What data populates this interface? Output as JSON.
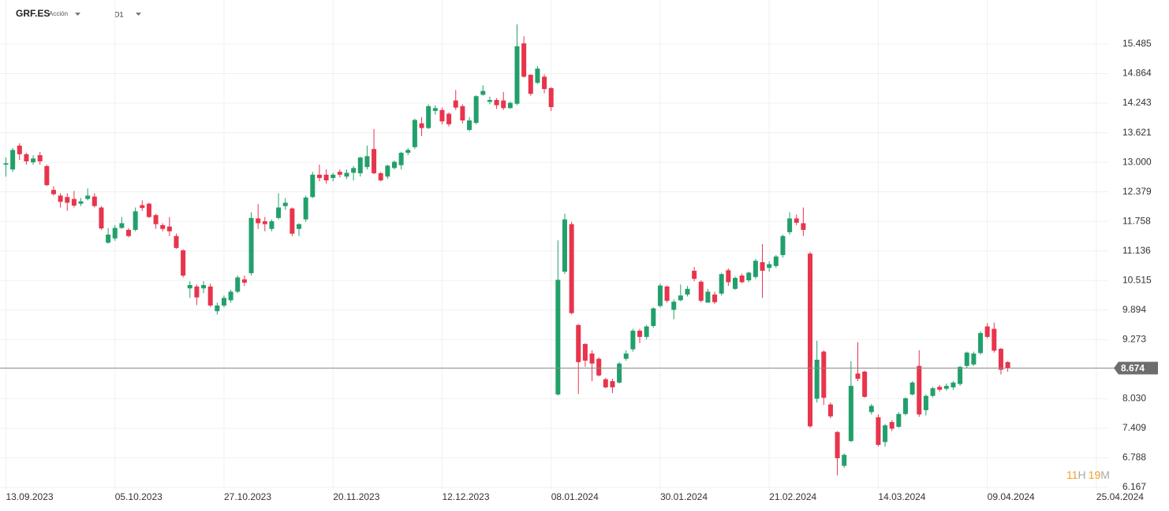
{
  "header": {
    "symbol": "GRF.ES",
    "kind": "Acción",
    "timeframe": "D1"
  },
  "countdown": {
    "hours": "11",
    "hours_unit": "H",
    "minutes": "19",
    "minutes_unit": "M"
  },
  "chart_data": {
    "type": "candlestick",
    "categories": [
      "13.09.2023",
      null,
      null,
      null,
      null,
      null,
      null,
      null,
      null,
      null,
      null,
      null,
      null,
      null,
      null,
      null,
      "05.10.2023",
      null,
      null,
      null,
      null,
      null,
      null,
      null,
      null,
      null,
      null,
      null,
      null,
      null,
      null,
      null,
      "27.10.2023",
      null,
      null,
      null,
      null,
      null,
      null,
      null,
      null,
      null,
      null,
      null,
      null,
      null,
      null,
      null,
      "20.11.2023",
      null,
      null,
      null,
      null,
      null,
      null,
      null,
      null,
      null,
      null,
      null,
      null,
      null,
      null,
      null,
      "12.12.2023",
      null,
      null,
      null,
      null,
      null,
      null,
      null,
      null,
      null,
      null,
      null,
      null,
      null,
      null,
      null,
      "08.01.2024",
      null,
      null,
      null,
      null,
      null,
      null,
      null,
      null,
      null,
      null,
      null,
      null,
      null,
      null,
      null,
      "30.01.2024",
      null,
      null,
      null,
      null,
      null,
      null,
      null,
      null,
      null,
      null,
      null,
      null,
      null,
      null,
      null,
      "21.02.2024",
      null,
      null,
      null,
      null,
      null,
      null,
      null,
      null,
      null,
      null,
      null,
      null,
      null,
      null,
      null,
      "14.03.2024",
      null,
      null,
      null,
      null,
      null,
      null,
      null,
      null,
      null,
      null,
      null,
      null,
      null,
      null,
      null,
      "09.04.2024",
      null,
      null,
      null,
      null,
      null,
      null,
      null,
      null,
      null,
      null,
      null,
      null,
      null,
      null,
      null,
      "25.04.2024"
    ],
    "open": [
      12.95,
      12.85,
      13.35,
      13.17,
      13.0,
      13.15,
      12.92,
      12.42,
      12.3,
      12.27,
      12.23,
      12.13,
      12.23,
      12.28,
      12.05,
      11.31,
      11.4,
      11.62,
      11.58,
      11.58,
      12.1,
      12.13,
      11.89,
      11.68,
      11.65,
      11.45,
      11.15,
      10.35,
      10.39,
      10.35,
      10.39,
      9.87,
      9.99,
      10.1,
      10.28,
      10.54,
      10.67,
      11.82,
      11.76,
      11.6,
      11.83,
      12.08,
      12.03,
      11.6,
      11.8,
      12.27,
      12.74,
      12.74,
      12.67,
      12.8,
      12.7,
      12.78,
      12.77,
      12.9,
      13.28,
      12.77,
      12.7,
      12.88,
      12.94,
      13.2,
      13.32,
      13.82,
      13.72,
      14.08,
      14.1,
      14.02,
      14.3,
      14.18,
      13.68,
      13.83,
      14.42,
      14.27,
      14.31,
      14.3,
      14.14,
      14.23,
      15.5,
      14.84,
      14.67,
      14.8,
      14.56,
      8.12,
      10.7,
      11.7,
      9.58,
      9.18,
      8.98,
      8.87,
      8.44,
      8.4,
      8.37,
      8.87,
      9.07,
      9.46,
      9.33,
      9.56,
      9.98,
      10.39,
      9.9,
      10.1,
      10.22,
      10.72,
      10.49,
      10.05,
      10.22,
      10.24,
      10.73,
      10.34,
      10.62,
      10.52,
      10.59,
      10.9,
      10.78,
      10.82,
      11.05,
      11.53,
      11.82,
      11.72,
      11.08,
      8.03,
      9.02,
      7.91,
      7.33,
      6.62,
      7.14,
      8.56,
      8.6,
      7.75,
      7.64,
      7.12,
      7.54,
      7.44,
      7.71,
      8.12,
      8.72,
      7.79,
      8.09,
      8.28,
      8.24,
      8.27,
      8.34,
      8.72,
      8.75,
      8.99,
      9.55,
      9.5,
      9.08,
      8.8,
      null,
      null,
      null,
      null,
      null,
      null,
      null,
      null,
      null,
      null,
      null,
      null,
      null
    ],
    "high": [
      13.1,
      13.3,
      13.4,
      13.2,
      13.15,
      13.22,
      12.95,
      12.5,
      12.35,
      12.35,
      12.4,
      12.25,
      12.45,
      12.35,
      12.08,
      11.62,
      11.68,
      11.85,
      11.62,
      12.05,
      12.2,
      12.15,
      11.92,
      11.72,
      11.85,
      11.5,
      11.17,
      10.5,
      10.43,
      10.5,
      10.45,
      10.05,
      10.2,
      10.32,
      10.62,
      10.62,
      11.95,
      12.12,
      11.85,
      11.8,
      12.35,
      12.25,
      12.05,
      11.72,
      12.3,
      12.8,
      12.95,
      12.85,
      12.78,
      12.85,
      12.85,
      12.92,
      13.12,
      13.35,
      13.7,
      12.8,
      12.95,
      13.04,
      13.22,
      13.3,
      13.92,
      13.95,
      14.22,
      14.2,
      14.15,
      14.05,
      14.52,
      14.22,
      13.95,
      14.41,
      14.62,
      14.38,
      14.35,
      14.48,
      14.28,
      15.9,
      15.65,
      14.85,
      15.02,
      14.85,
      14.58,
      11.36,
      11.92,
      11.75,
      9.6,
      9.2,
      9.05,
      8.9,
      8.47,
      8.45,
      8.8,
      9.05,
      9.5,
      9.5,
      9.58,
      9.95,
      10.45,
      10.41,
      10.12,
      10.43,
      10.4,
      10.8,
      10.52,
      10.34,
      10.28,
      10.68,
      10.77,
      10.6,
      10.66,
      10.7,
      10.97,
      11.28,
      10.92,
      11.05,
      11.48,
      11.95,
      11.9,
      12.05,
      11.12,
      9.25,
      9.05,
      7.95,
      7.35,
      6.88,
      8.82,
      9.22,
      8.62,
      7.92,
      7.7,
      7.5,
      7.58,
      7.75,
      8.06,
      8.4,
      9.05,
      8.12,
      8.28,
      8.32,
      8.35,
      8.4,
      8.72,
      9.02,
      9.02,
      9.45,
      9.62,
      9.63,
      9.1,
      8.82,
      null,
      null,
      null,
      null,
      null,
      null,
      null,
      null,
      null,
      null,
      null,
      null,
      null
    ],
    "low": [
      12.7,
      12.8,
      13.05,
      12.95,
      12.95,
      12.95,
      12.5,
      12.3,
      12.05,
      11.98,
      12.05,
      12.08,
      12.2,
      12.05,
      11.58,
      11.29,
      11.35,
      11.6,
      11.42,
      11.55,
      11.98,
      11.83,
      11.6,
      11.55,
      11.45,
      11.18,
      10.58,
      10.15,
      10.0,
      10.25,
      9.96,
      9.8,
      9.95,
      10.05,
      10.25,
      10.4,
      10.62,
      11.6,
      11.55,
      11.55,
      11.8,
      12.0,
      11.45,
      11.45,
      11.75,
      12.25,
      12.6,
      12.55,
      12.6,
      12.68,
      12.65,
      12.62,
      12.7,
      12.85,
      12.75,
      12.6,
      12.65,
      12.85,
      12.85,
      13.15,
      13.28,
      13.55,
      13.7,
      14.0,
      13.8,
      13.75,
      14.1,
      13.82,
      13.65,
      13.8,
      14.4,
      14.22,
      14.12,
      14.1,
      14.12,
      14.2,
      14.78,
      14.4,
      14.65,
      14.45,
      14.08,
      8.1,
      10.65,
      9.8,
      8.13,
      8.7,
      8.4,
      8.5,
      8.25,
      8.15,
      8.35,
      8.83,
      9.02,
      9.2,
      9.28,
      9.52,
      9.95,
      10.05,
      9.7,
      10.08,
      10.18,
      10.5,
      10.05,
      10.05,
      10.02,
      10.2,
      10.4,
      10.32,
      10.46,
      10.48,
      10.55,
      10.15,
      10.7,
      10.78,
      11.0,
      11.48,
      11.68,
      11.45,
      7.42,
      7.95,
      7.9,
      7.62,
      6.42,
      6.58,
      7.12,
      8.4,
      8.05,
      7.7,
      7.03,
      7.02,
      7.35,
      7.42,
      7.68,
      8.1,
      7.65,
      7.68,
      8.06,
      8.18,
      8.2,
      8.22,
      8.3,
      8.68,
      8.72,
      8.96,
      9.3,
      9.0,
      8.54,
      8.6,
      null,
      null,
      null,
      null,
      null,
      null,
      null,
      null,
      null,
      null,
      null,
      null,
      null
    ],
    "close": [
      12.98,
      13.26,
      13.17,
      13.02,
      13.08,
      13.02,
      12.52,
      12.33,
      12.17,
      12.15,
      12.09,
      12.18,
      12.3,
      12.08,
      11.61,
      11.48,
      11.62,
      11.72,
      11.45,
      11.97,
      12.04,
      11.85,
      11.7,
      11.6,
      11.55,
      11.2,
      10.62,
      10.42,
      10.16,
      10.42,
      9.99,
      9.99,
      10.15,
      10.28,
      10.58,
      10.47,
      11.83,
      11.72,
      11.7,
      11.76,
      12.05,
      12.15,
      11.5,
      11.7,
      12.26,
      12.74,
      12.67,
      12.62,
      12.74,
      12.74,
      12.78,
      12.88,
      13.1,
      13.13,
      12.77,
      12.62,
      12.93,
      13.01,
      13.2,
      13.26,
      13.89,
      13.72,
      14.18,
      14.14,
      13.86,
      13.8,
      14.15,
      13.88,
      13.88,
      14.39,
      14.5,
      14.31,
      14.2,
      14.14,
      14.25,
      15.44,
      14.8,
      14.44,
      14.97,
      14.54,
      14.16,
      10.53,
      11.8,
      9.83,
      8.8,
      8.83,
      8.77,
      8.52,
      8.27,
      8.27,
      8.77,
      8.98,
      9.46,
      9.33,
      9.55,
      9.93,
      10.41,
      10.09,
      10.07,
      10.2,
      10.34,
      10.55,
      10.09,
      10.28,
      10.06,
      10.65,
      10.48,
      10.57,
      10.48,
      10.68,
      10.93,
      10.72,
      10.86,
      11.02,
      11.45,
      11.82,
      11.73,
      11.58,
      7.45,
      8.85,
      8.05,
      7.66,
      6.78,
      6.85,
      8.3,
      8.45,
      8.07,
      7.88,
      7.06,
      7.47,
      7.4,
      7.71,
      8.04,
      8.37,
      7.7,
      8.09,
      8.25,
      8.22,
      8.3,
      8.37,
      8.7,
      9.0,
      8.98,
      9.41,
      9.33,
      9.04,
      8.64,
      8.674,
      null,
      null,
      null,
      null,
      null,
      null,
      null,
      null,
      null,
      null,
      null,
      null,
      null
    ],
    "up_color": "#22a06b",
    "down_color": "#e8344c",
    "last_price": 8.674,
    "ylim": [
      6.117,
      16.412
    ],
    "yticks": [
      6.167,
      6.788,
      7.409,
      {
        "value": 8.03,
        "label": "8.030"
      },
      9.273,
      9.894,
      10.515,
      11.136,
      11.758,
      12.379,
      {
        "value": 13,
        "label": "13.000"
      },
      13.621,
      14.243,
      14.864,
      15.485
    ],
    "grid": true
  }
}
